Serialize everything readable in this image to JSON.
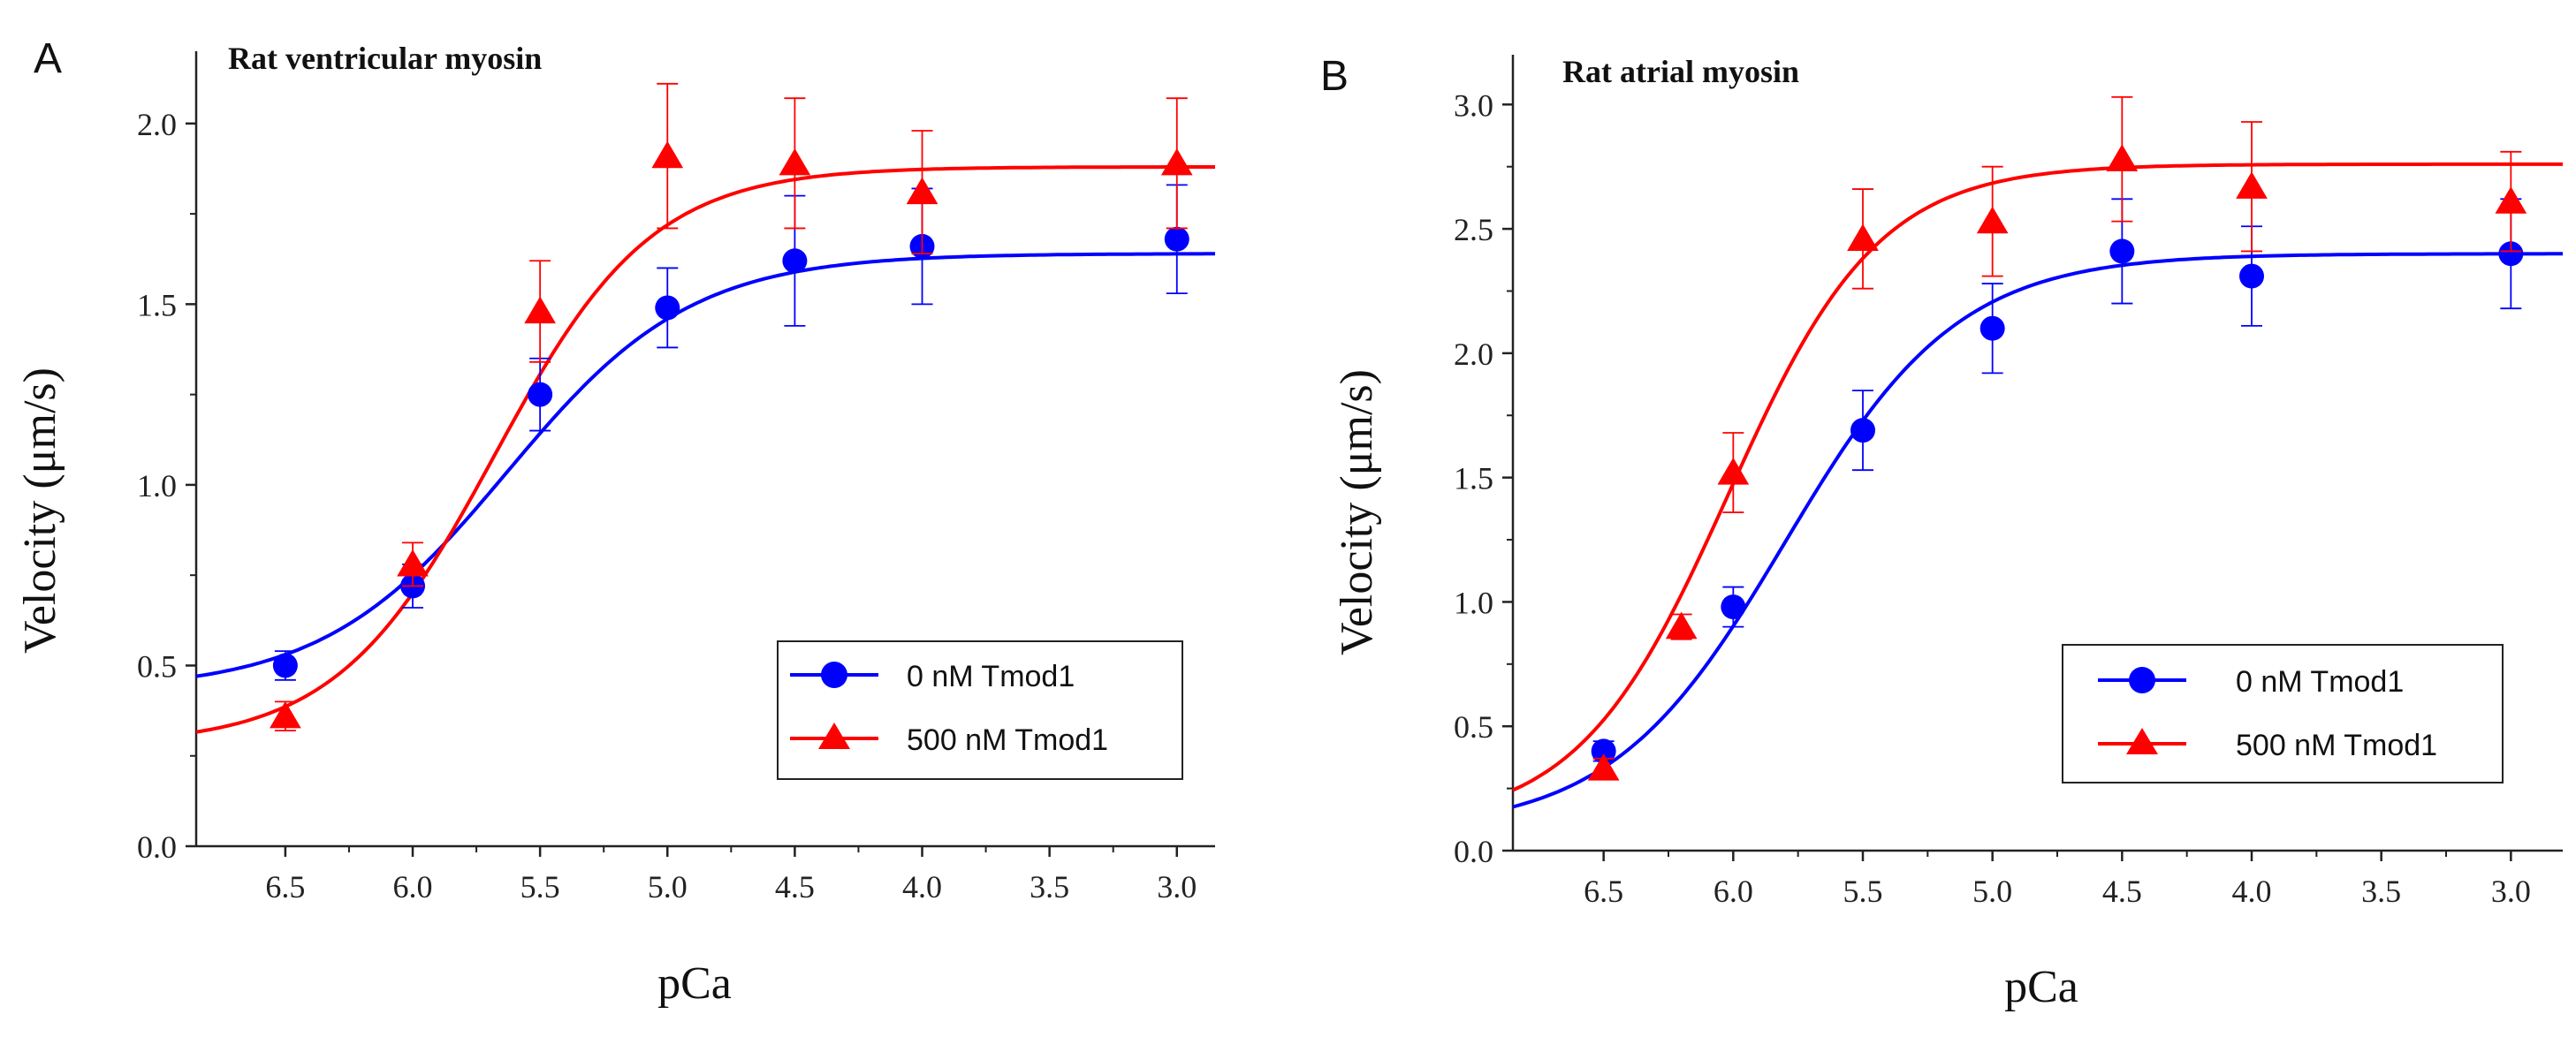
{
  "chart_data": [
    {
      "panel_label": "A",
      "type": "scatter",
      "title": "Rat ventricular myosin",
      "xlabel": "pCa",
      "ylabel": "Velocity (μm/s)",
      "xlim": [
        6.85,
        2.85
      ],
      "ylim": [
        0.0,
        2.2
      ],
      "x_reversed": true,
      "xticks": [
        6.5,
        6.0,
        5.5,
        5.0,
        4.5,
        4.0,
        3.5,
        3.0
      ],
      "xtick_labels": [
        "6.5",
        "6.0",
        "5.5",
        "5.0",
        "4.5",
        "4.0",
        "3.5",
        "3.0"
      ],
      "yticks": [
        0.0,
        0.5,
        1.0,
        1.5,
        2.0
      ],
      "ytick_labels": [
        "0.0",
        "0.5",
        "1.0",
        "1.5",
        "2.0"
      ],
      "legend_position": "bottom-right",
      "series": [
        {
          "name": "0 nM Tmod1",
          "color": "#0000ff",
          "marker": "circle",
          "x": [
            6.5,
            6.0,
            5.5,
            5.0,
            4.5,
            4.0,
            3.0
          ],
          "y": [
            0.5,
            0.72,
            1.25,
            1.49,
            1.62,
            1.66,
            1.68
          ],
          "err": [
            0.04,
            0.06,
            0.1,
            0.11,
            0.18,
            0.16,
            0.15
          ],
          "fit": {
            "bottom": 0.43,
            "top": 1.64,
            "pca50": 5.63,
            "n": 1.2
          }
        },
        {
          "name": "500 nM Tmod1",
          "color": "#ff0000",
          "marker": "triangle",
          "x": [
            6.5,
            6.0,
            5.5,
            5.0,
            4.5,
            4.0,
            3.0
          ],
          "y": [
            0.36,
            0.78,
            1.48,
            1.91,
            1.89,
            1.81,
            1.89
          ],
          "err": [
            0.04,
            0.06,
            0.14,
            0.2,
            0.18,
            0.17,
            0.18
          ],
          "fit": {
            "bottom": 0.28,
            "top": 1.88,
            "pca50": 5.68,
            "n": 1.4
          }
        }
      ]
    },
    {
      "panel_label": "B",
      "type": "scatter",
      "title": "Rat atrial myosin",
      "xlabel": "pCa",
      "ylabel": "Velocity (μm/s)",
      "xlim": [
        6.85,
        2.8
      ],
      "ylim": [
        0.0,
        3.2
      ],
      "x_reversed": true,
      "xticks": [
        6.5,
        6.0,
        5.5,
        5.0,
        4.5,
        4.0,
        3.5,
        3.0
      ],
      "xtick_labels": [
        "6.5",
        "6.0",
        "5.5",
        "5.0",
        "4.5",
        "4.0",
        "3.5",
        "3.0"
      ],
      "yticks": [
        0.0,
        0.5,
        1.0,
        1.5,
        2.0,
        2.5,
        3.0
      ],
      "ytick_labels": [
        "0.0",
        "0.5",
        "1.0",
        "1.5",
        "2.0",
        "2.5",
        "3.0"
      ],
      "legend_position": "bottom-right",
      "series": [
        {
          "name": "0 nM Tmod1",
          "color": "#0000ff",
          "marker": "circle",
          "x": [
            6.5,
            6.0,
            5.5,
            5.0,
            4.5,
            4.0,
            3.0
          ],
          "y": [
            0.4,
            0.98,
            1.69,
            2.1,
            2.41,
            2.31,
            2.4
          ],
          "err": [
            0.04,
            0.08,
            0.16,
            0.18,
            0.21,
            0.2,
            0.22
          ],
          "fit": {
            "bottom": 0.08,
            "top": 2.4,
            "pca50": 5.8,
            "n": 1.3
          }
        },
        {
          "name": "500 nM Tmod1",
          "color": "#ff0000",
          "marker": "triangle",
          "x": [
            6.5,
            6.2,
            6.0,
            5.5,
            5.0,
            4.5,
            4.0,
            3.0
          ],
          "y": [
            0.33,
            0.9,
            1.52,
            2.46,
            2.53,
            2.78,
            2.67,
            2.61
          ],
          "err": [
            0.04,
            0.05,
            0.16,
            0.2,
            0.22,
            0.25,
            0.26,
            0.2
          ],
          "fit": {
            "bottom": 0.1,
            "top": 2.76,
            "pca50": 6.02,
            "n": 1.5
          }
        }
      ]
    }
  ]
}
